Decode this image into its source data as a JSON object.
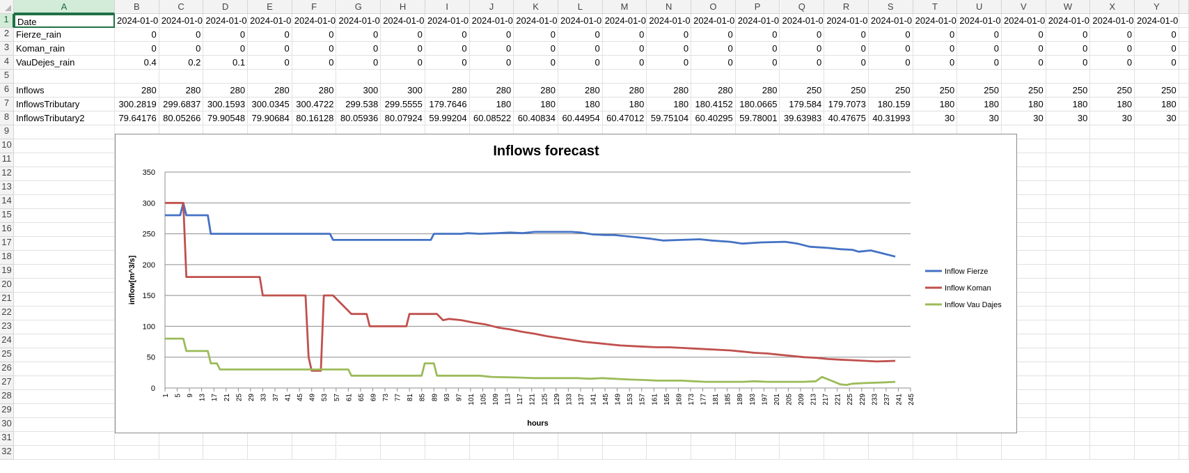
{
  "sheet": {
    "columns": [
      "A",
      "B",
      "C",
      "D",
      "E",
      "F",
      "G",
      "H",
      "I",
      "J",
      "K",
      "L",
      "M",
      "N",
      "O",
      "P",
      "Q",
      "R",
      "S",
      "T",
      "U",
      "V",
      "W",
      "X",
      "Y"
    ],
    "selected_cell": "A1",
    "rows": [
      {
        "num": "1",
        "label": "Date",
        "values": [
          "2024-01-0",
          "2024-01-0",
          "2024-01-0",
          "2024-01-0",
          "2024-01-0",
          "2024-01-0",
          "2024-01-0",
          "2024-01-0",
          "2024-01-0",
          "2024-01-0",
          "2024-01-0",
          "2024-01-0",
          "2024-01-0",
          "2024-01-0",
          "2024-01-0",
          "2024-01-0",
          "2024-01-0",
          "2024-01-0",
          "2024-01-0",
          "2024-01-0",
          "2024-01-0",
          "2024-01-0",
          "2024-01-0",
          "2024-01-0"
        ]
      },
      {
        "num": "2",
        "label": "Fierze_rain",
        "values": [
          "0",
          "0",
          "0",
          "0",
          "0",
          "0",
          "0",
          "0",
          "0",
          "0",
          "0",
          "0",
          "0",
          "0",
          "0",
          "0",
          "0",
          "0",
          "0",
          "0",
          "0",
          "0",
          "0",
          "0"
        ]
      },
      {
        "num": "3",
        "label": "Koman_rain",
        "values": [
          "0",
          "0",
          "0",
          "0",
          "0",
          "0",
          "0",
          "0",
          "0",
          "0",
          "0",
          "0",
          "0",
          "0",
          "0",
          "0",
          "0",
          "0",
          "0",
          "0",
          "0",
          "0",
          "0",
          "0"
        ]
      },
      {
        "num": "4",
        "label": "VauDejes_rain",
        "values": [
          "0.4",
          "0.2",
          "0.1",
          "0",
          "0",
          "0",
          "0",
          "0",
          "0",
          "0",
          "0",
          "0",
          "0",
          "0",
          "0",
          "0",
          "0",
          "0",
          "0",
          "0",
          "0",
          "0",
          "0",
          "0"
        ]
      },
      {
        "num": "5",
        "label": "",
        "values": []
      },
      {
        "num": "6",
        "label": "Inflows",
        "values": [
          "280",
          "280",
          "280",
          "280",
          "280",
          "300",
          "300",
          "280",
          "280",
          "280",
          "280",
          "280",
          "280",
          "280",
          "280",
          "250",
          "250",
          "250",
          "250",
          "250",
          "250",
          "250",
          "250",
          "250"
        ]
      },
      {
        "num": "7",
        "label": "InflowsTributary",
        "values": [
          "300.2819",
          "299.6837",
          "300.1593",
          "300.0345",
          "300.4722",
          "299.538",
          "299.5555",
          "179.7646",
          "180",
          "180",
          "180",
          "180",
          "180",
          "180.4152",
          "180.0665",
          "179.584",
          "179.7073",
          "180.159",
          "180",
          "180",
          "180",
          "180",
          "180",
          "180"
        ]
      },
      {
        "num": "8",
        "label": "InflowsTributary2",
        "values": [
          "79.64176",
          "80.05266",
          "79.90548",
          "79.90684",
          "80.16128",
          "80.05936",
          "80.07924",
          "59.99204",
          "60.08522",
          "60.40834",
          "60.44954",
          "60.47012",
          "59.75104",
          "60.40295",
          "59.78001",
          "39.63983",
          "40.47675",
          "40.31993",
          "30",
          "30",
          "30",
          "30",
          "30",
          "30"
        ]
      }
    ],
    "extra_rows": [
      "9",
      "10",
      "11",
      "12",
      "13",
      "14",
      "15",
      "16",
      "17",
      "18",
      "19",
      "20",
      "21",
      "22",
      "23",
      "24",
      "25",
      "26",
      "27",
      "28",
      "29",
      "30",
      "31",
      "32"
    ]
  },
  "chart_data": {
    "type": "line",
    "title": "Inflows forecast",
    "xlabel": "hours",
    "ylabel": "inflow[m^3/s]",
    "ylim": [
      0,
      350
    ],
    "yticks": [
      0,
      50,
      100,
      150,
      200,
      250,
      300,
      350
    ],
    "xlim": [
      1,
      245
    ],
    "xticks": [
      1,
      5,
      9,
      13,
      17,
      21,
      25,
      29,
      33,
      37,
      41,
      45,
      49,
      53,
      57,
      61,
      65,
      69,
      73,
      77,
      81,
      85,
      89,
      93,
      97,
      101,
      105,
      109,
      113,
      117,
      121,
      125,
      129,
      133,
      137,
      141,
      145,
      149,
      153,
      157,
      161,
      165,
      169,
      173,
      177,
      181,
      185,
      189,
      193,
      197,
      201,
      205,
      209,
      213,
      217,
      221,
      225,
      229,
      233,
      237,
      241,
      245
    ],
    "grid": "horizontal",
    "legend_position": "right",
    "series": [
      {
        "name": "Inflow Fierze",
        "color": "#4472c4",
        "points": [
          [
            1,
            280
          ],
          [
            6,
            280
          ],
          [
            7,
            300
          ],
          [
            8,
            280
          ],
          [
            15,
            280
          ],
          [
            16,
            250
          ],
          [
            55,
            250
          ],
          [
            56,
            240
          ],
          [
            88,
            240
          ],
          [
            89,
            250
          ],
          [
            98,
            250
          ],
          [
            100,
            251
          ],
          [
            104,
            250
          ],
          [
            110,
            251
          ],
          [
            114,
            252
          ],
          [
            118,
            251
          ],
          [
            122,
            253
          ],
          [
            134,
            253
          ],
          [
            137,
            252
          ],
          [
            141,
            249
          ],
          [
            145,
            248
          ],
          [
            148,
            248
          ],
          [
            152,
            246
          ],
          [
            156,
            244
          ],
          [
            160,
            242
          ],
          [
            164,
            239
          ],
          [
            170,
            240
          ],
          [
            176,
            241
          ],
          [
            180,
            239
          ],
          [
            186,
            237
          ],
          [
            190,
            234
          ],
          [
            196,
            236
          ],
          [
            204,
            237
          ],
          [
            208,
            234
          ],
          [
            212,
            229
          ],
          [
            218,
            227
          ],
          [
            222,
            225
          ],
          [
            226,
            224
          ],
          [
            228,
            221
          ],
          [
            232,
            223
          ],
          [
            236,
            218
          ],
          [
            240,
            213
          ]
        ]
      },
      {
        "name": "Inflow Koman",
        "color": "#c0504d",
        "points": [
          [
            1,
            300
          ],
          [
            5,
            300
          ],
          [
            7,
            300
          ],
          [
            8,
            180
          ],
          [
            14,
            180
          ],
          [
            18,
            180
          ],
          [
            32,
            180
          ],
          [
            33,
            150
          ],
          [
            47,
            150
          ],
          [
            48,
            50
          ],
          [
            49,
            28
          ],
          [
            52,
            28
          ],
          [
            53,
            150
          ],
          [
            56,
            150
          ],
          [
            58,
            140
          ],
          [
            60,
            130
          ],
          [
            62,
            120
          ],
          [
            67,
            120
          ],
          [
            68,
            100
          ],
          [
            80,
            100
          ],
          [
            81,
            120
          ],
          [
            90,
            120
          ],
          [
            92,
            110
          ],
          [
            94,
            112
          ],
          [
            98,
            110
          ],
          [
            102,
            106
          ],
          [
            106,
            103
          ],
          [
            110,
            98
          ],
          [
            114,
            95
          ],
          [
            118,
            91
          ],
          [
            122,
            88
          ],
          [
            126,
            84
          ],
          [
            130,
            81
          ],
          [
            134,
            78
          ],
          [
            138,
            75
          ],
          [
            142,
            73
          ],
          [
            146,
            71
          ],
          [
            150,
            69
          ],
          [
            154,
            68
          ],
          [
            158,
            67
          ],
          [
            162,
            66
          ],
          [
            166,
            66
          ],
          [
            170,
            65
          ],
          [
            174,
            64
          ],
          [
            178,
            63
          ],
          [
            182,
            62
          ],
          [
            186,
            61
          ],
          [
            190,
            59
          ],
          [
            194,
            57
          ],
          [
            198,
            56
          ],
          [
            202,
            54
          ],
          [
            206,
            52
          ],
          [
            210,
            50
          ],
          [
            214,
            49
          ],
          [
            218,
            47
          ],
          [
            222,
            46
          ],
          [
            226,
            45
          ],
          [
            230,
            44
          ],
          [
            234,
            43
          ],
          [
            240,
            44
          ]
        ]
      },
      {
        "name": "Inflow Vau Dajes",
        "color": "#9bbb59",
        "points": [
          [
            1,
            80
          ],
          [
            7,
            80
          ],
          [
            8,
            60
          ],
          [
            12,
            60
          ],
          [
            15,
            60
          ],
          [
            16,
            40
          ],
          [
            18,
            40
          ],
          [
            19,
            30
          ],
          [
            53,
            30
          ],
          [
            61,
            30
          ],
          [
            62,
            20
          ],
          [
            85,
            20
          ],
          [
            86,
            40
          ],
          [
            89,
            40
          ],
          [
            90,
            20
          ],
          [
            104,
            20
          ],
          [
            108,
            18
          ],
          [
            116,
            17
          ],
          [
            122,
            16
          ],
          [
            128,
            16
          ],
          [
            136,
            16
          ],
          [
            140,
            15
          ],
          [
            144,
            16
          ],
          [
            148,
            15
          ],
          [
            152,
            14
          ],
          [
            158,
            13
          ],
          [
            162,
            12
          ],
          [
            166,
            12
          ],
          [
            170,
            12
          ],
          [
            174,
            11
          ],
          [
            178,
            10
          ],
          [
            184,
            10
          ],
          [
            190,
            10
          ],
          [
            194,
            11
          ],
          [
            198,
            10
          ],
          [
            202,
            10
          ],
          [
            206,
            10
          ],
          [
            210,
            10
          ],
          [
            214,
            11
          ],
          [
            216,
            18
          ],
          [
            218,
            14
          ],
          [
            220,
            10
          ],
          [
            222,
            6
          ],
          [
            224,
            5
          ],
          [
            226,
            7
          ],
          [
            230,
            8
          ],
          [
            236,
            9
          ],
          [
            240,
            10
          ]
        ]
      }
    ]
  }
}
